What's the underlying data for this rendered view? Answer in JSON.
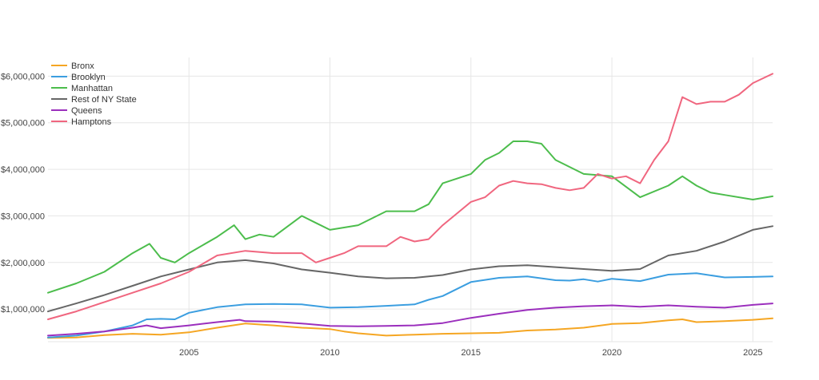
{
  "chart_data": {
    "type": "line",
    "title": "",
    "xlabel": "",
    "ylabel": "",
    "xlim": [
      2000,
      2025.7
    ],
    "ylim": [
      300000,
      6400000
    ],
    "grid": true,
    "legend_placement": "top-left",
    "x_ticks": [
      2005,
      2010,
      2015,
      2020,
      2025
    ],
    "x_tick_labels": [
      "2005",
      "2010",
      "2015",
      "2020",
      "2025"
    ],
    "y_ticks": [
      1000000,
      2000000,
      3000000,
      4000000,
      5000000,
      6000000
    ],
    "y_tick_labels": [
      "$1,000,000",
      "$2,000,000",
      "$3,000,000",
      "$4,000,000",
      "$5,000,000",
      "$6,000,000"
    ],
    "series": [
      {
        "name": "Bronx",
        "color": "#f5a623",
        "x": [
          2000,
          2001,
          2002,
          2003,
          2004,
          2005,
          2006,
          2007,
          2008,
          2009,
          2010,
          2010.5,
          2011,
          2012,
          2013,
          2014,
          2015,
          2016,
          2017,
          2018,
          2019,
          2020,
          2021,
          2022,
          2022.5,
          2023,
          2024,
          2025,
          2025.7
        ],
        "y": [
          380000,
          390000,
          440000,
          470000,
          450000,
          500000,
          600000,
          690000,
          650000,
          600000,
          570000,
          520000,
          480000,
          430000,
          450000,
          470000,
          480000,
          490000,
          540000,
          560000,
          600000,
          680000,
          700000,
          760000,
          780000,
          720000,
          740000,
          770000,
          800000
        ]
      },
      {
        "name": "Brooklyn",
        "color": "#3b9ee0",
        "x": [
          2000,
          2001,
          2002,
          2003,
          2003.5,
          2004,
          2004.5,
          2005,
          2006,
          2007,
          2008,
          2009,
          2010,
          2011,
          2012,
          2013,
          2013.5,
          2014,
          2015,
          2016,
          2017,
          2018,
          2018.5,
          2019,
          2019.5,
          2020,
          2021,
          2022,
          2023,
          2024,
          2025,
          2025.7
        ],
        "y": [
          390000,
          430000,
          520000,
          650000,
          780000,
          790000,
          780000,
          920000,
          1040000,
          1100000,
          1110000,
          1100000,
          1030000,
          1040000,
          1070000,
          1100000,
          1200000,
          1280000,
          1580000,
          1670000,
          1700000,
          1620000,
          1610000,
          1640000,
          1590000,
          1650000,
          1600000,
          1740000,
          1770000,
          1680000,
          1690000,
          1700000
        ]
      },
      {
        "name": "Manhattan",
        "color": "#4cbd4c",
        "x": [
          2000,
          2001,
          2002,
          2003,
          2003.6,
          2004,
          2004.5,
          2005,
          2006,
          2006.6,
          2007,
          2007.5,
          2008,
          2009,
          2009.5,
          2010,
          2010.5,
          2011,
          2012,
          2013,
          2013.5,
          2014,
          2015,
          2015.5,
          2016,
          2016.5,
          2017,
          2017.5,
          2018,
          2019,
          2020,
          2021,
          2022,
          2022.5,
          2023,
          2023.5,
          2024,
          2025,
          2025.7
        ],
        "y": [
          1350000,
          1550000,
          1800000,
          2200000,
          2400000,
          2100000,
          2000000,
          2200000,
          2550000,
          2800000,
          2500000,
          2600000,
          2550000,
          3000000,
          2850000,
          2700000,
          2750000,
          2800000,
          3100000,
          3100000,
          3250000,
          3700000,
          3900000,
          4200000,
          4350000,
          4600000,
          4600000,
          4550000,
          4200000,
          3900000,
          3850000,
          3400000,
          3650000,
          3850000,
          3650000,
          3500000,
          3450000,
          3350000,
          3420000
        ]
      },
      {
        "name": "Rest of NY State",
        "color": "#666666",
        "x": [
          2000,
          2001,
          2002,
          2003,
          2004,
          2005,
          2006,
          2007,
          2008,
          2009,
          2010,
          2011,
          2012,
          2013,
          2014,
          2015,
          2016,
          2017,
          2018,
          2019,
          2020,
          2021,
          2022,
          2023,
          2024,
          2025,
          2025.7
        ],
        "y": [
          950000,
          1120000,
          1300000,
          1500000,
          1700000,
          1850000,
          2000000,
          2050000,
          1980000,
          1850000,
          1780000,
          1700000,
          1660000,
          1670000,
          1730000,
          1850000,
          1920000,
          1940000,
          1900000,
          1860000,
          1820000,
          1860000,
          2150000,
          2250000,
          2450000,
          2700000,
          2780000
        ]
      },
      {
        "name": "Queens",
        "color": "#9b2fbd",
        "x": [
          2000,
          2001,
          2002,
          2003,
          2003.5,
          2004,
          2005,
          2006,
          2006.8,
          2007,
          2008,
          2009,
          2010,
          2011,
          2012,
          2013,
          2014,
          2015,
          2016,
          2017,
          2018,
          2019,
          2020,
          2021,
          2022,
          2023,
          2024,
          2025,
          2025.7
        ],
        "y": [
          430000,
          470000,
          520000,
          600000,
          650000,
          590000,
          650000,
          720000,
          770000,
          740000,
          730000,
          690000,
          640000,
          630000,
          640000,
          650000,
          700000,
          810000,
          900000,
          980000,
          1030000,
          1060000,
          1080000,
          1050000,
          1080000,
          1050000,
          1030000,
          1090000,
          1120000
        ]
      },
      {
        "name": "Hamptons",
        "color": "#f0667f",
        "x": [
          2000,
          2001,
          2002,
          2003,
          2004,
          2005,
          2006,
          2007,
          2008,
          2009,
          2009.5,
          2010,
          2010.5,
          2011,
          2012,
          2012.5,
          2013,
          2013.5,
          2014,
          2014.5,
          2015,
          2015.5,
          2016,
          2016.5,
          2017,
          2017.5,
          2018,
          2018.5,
          2019,
          2019.5,
          2020,
          2020.5,
          2021,
          2021.5,
          2022,
          2022.5,
          2023,
          2023.5,
          2024,
          2024.5,
          2025,
          2025.7
        ],
        "y": [
          780000,
          950000,
          1150000,
          1350000,
          1550000,
          1800000,
          2150000,
          2250000,
          2200000,
          2200000,
          2000000,
          2100000,
          2200000,
          2350000,
          2350000,
          2550000,
          2450000,
          2500000,
          2800000,
          3050000,
          3300000,
          3400000,
          3650000,
          3750000,
          3700000,
          3680000,
          3600000,
          3550000,
          3600000,
          3900000,
          3800000,
          3850000,
          3700000,
          4200000,
          4600000,
          5550000,
          5400000,
          5450000,
          5450000,
          5600000,
          5850000,
          6050000
        ]
      }
    ]
  }
}
